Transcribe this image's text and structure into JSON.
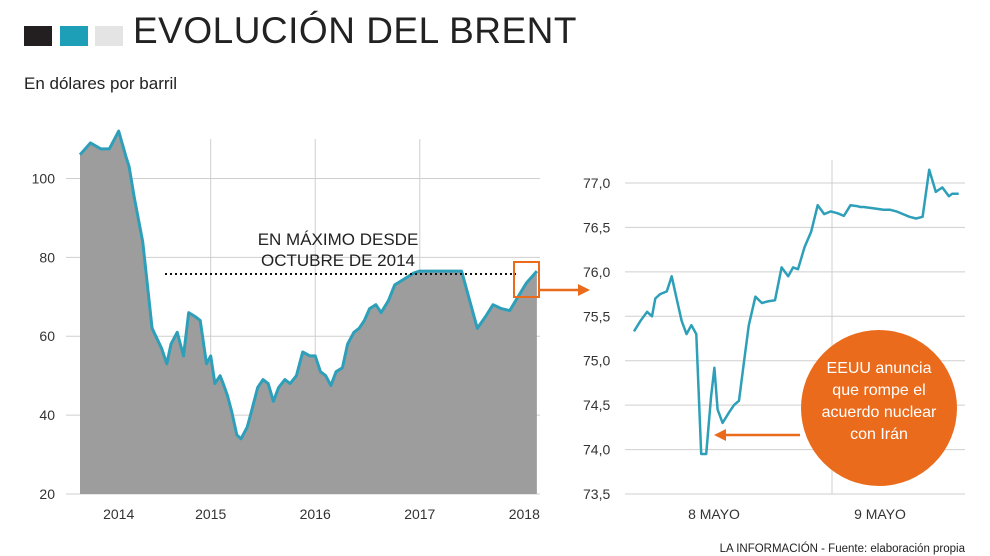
{
  "header": {
    "title": "EVOLUCIÓN DEL BRENT",
    "subtitle": "En dólares por barril",
    "square_colors": [
      "#231f20",
      "#1e9fb8",
      "#e4e4e4"
    ]
  },
  "colors": {
    "area_fill": "#9d9d9d",
    "line": "#2e9fb9",
    "accent": "#ea6b1c",
    "grid": "#cfcfcf"
  },
  "annotations": {
    "max_label_line1": "EN MÁXIMO DESDE",
    "max_label_line2": "OCTUBRE DE 2014",
    "bubble_lines": [
      "EEUU anuncia",
      "que rompe el",
      "acuerdo nuclear",
      "con Irán"
    ]
  },
  "footer": {
    "source": "LA INFORMACIÓN - Fuente: elaboración propia"
  },
  "chart_data": [
    {
      "type": "area",
      "title": "",
      "xlabel": "",
      "ylabel": "",
      "ylim": [
        20,
        110
      ],
      "yticks": [
        "100",
        "80",
        "60",
        "40",
        "20"
      ],
      "xticks": [
        "2014",
        "2015",
        "2016",
        "2017",
        "2018"
      ],
      "reference_line": 76.5,
      "grid": true,
      "series": [
        {
          "x": [
            2013.75,
            2013.85,
            2013.95,
            2014.03,
            2014.12,
            2014.19,
            2014.22,
            2014.27,
            2014.35,
            2014.44,
            2014.53,
            2014.58,
            2014.62,
            2014.68,
            2014.74,
            2014.79,
            2014.85,
            2014.9,
            2014.96,
            2015.0,
            2015.04,
            2015.09,
            2015.12,
            2015.16,
            2015.2,
            2015.25,
            2015.29,
            2015.35,
            2015.39,
            2015.45,
            2015.5,
            2015.55,
            2015.6,
            2015.65,
            2015.71,
            2015.76,
            2015.82,
            2015.88,
            2015.95,
            2016.0,
            2016.05,
            2016.1,
            2016.15,
            2016.2,
            2016.26,
            2016.31,
            2016.37,
            2016.42,
            2016.47,
            2016.52,
            2016.58,
            2016.63,
            2016.7,
            2016.76,
            2016.82,
            2016.88,
            2016.94,
            2017.0,
            2017.05,
            2017.12,
            2017.19,
            2017.26,
            2017.33,
            2017.4,
            2017.48,
            2017.55,
            2017.63,
            2017.7,
            2017.78,
            2017.86,
            2017.92,
            2018.0,
            2018.05,
            2018.12
          ],
          "y": [
            106,
            109,
            107.5,
            107.5,
            112,
            105.5,
            103,
            95,
            84,
            62,
            57,
            53,
            58,
            61,
            55,
            66,
            65,
            64,
            53,
            55,
            48,
            50,
            48,
            45,
            41,
            35,
            34,
            37,
            41,
            47,
            49,
            48,
            43.5,
            47,
            49,
            48,
            50,
            56,
            55,
            55,
            51,
            50,
            47.5,
            51,
            52,
            58,
            61,
            62,
            64,
            67,
            68,
            66,
            69,
            73,
            74,
            75,
            76,
            76.5,
            76.5,
            76.5,
            76.5,
            76.5,
            76.5,
            76.5,
            76.5,
            76.5,
            76.5,
            76.5,
            76.5,
            76.5,
            76.5,
            76.5,
            76.5,
            76.5
          ]
        }
      ]
    },
    {
      "type": "line",
      "title": "",
      "xlabel": "",
      "ylabel": "",
      "ylim": [
        73.5,
        77.0
      ],
      "yticks": [
        "77,0",
        "76,5",
        "76,0",
        "75,5",
        "75,0",
        "74,5",
        "74,0",
        "73,5"
      ],
      "xticks": [
        "8 MAYO",
        "9 MAYO"
      ],
      "grid": true,
      "series": [
        {
          "x": [
            0,
            0.02,
            0.04,
            0.055,
            0.065,
            0.08,
            0.1,
            0.115,
            0.13,
            0.145,
            0.16,
            0.175,
            0.19,
            0.205,
            0.22,
            0.235,
            0.245,
            0.255,
            0.27,
            0.29,
            0.305,
            0.32,
            0.335,
            0.35,
            0.37,
            0.39,
            0.41,
            0.43,
            0.45,
            0.47,
            0.485,
            0.5,
            0.52,
            0.54,
            0.56,
            0.58,
            0.6,
            0.61,
            0.62,
            0.64,
            0.66,
            0.68,
            0.69,
            0.7,
            0.72,
            0.74,
            0.76,
            0.78,
            0.8,
            0.82,
            0.84,
            0.86,
            0.88,
            0.9,
            0.92,
            0.94,
            0.96,
            0.97,
            0.99
          ],
          "y": [
            75.33,
            75.45,
            75.55,
            75.5,
            75.7,
            75.75,
            75.78,
            75.95,
            75.7,
            75.45,
            75.3,
            75.4,
            75.3,
            73.95,
            73.95,
            74.6,
            74.92,
            74.45,
            74.3,
            74.42,
            74.5,
            74.55,
            74.98,
            75.4,
            75.72,
            75.65,
            75.67,
            75.68,
            76.05,
            75.95,
            76.05,
            76.03,
            76.28,
            76.45,
            76.75,
            76.65,
            76.68,
            76.67,
            76.66,
            76.63,
            76.75,
            76.74,
            76.73,
            76.73,
            76.72,
            76.71,
            76.7,
            76.7,
            76.68,
            76.65,
            76.62,
            76.6,
            76.62,
            77.15,
            76.9,
            76.95,
            76.85,
            76.88,
            76.88
          ]
        }
      ]
    }
  ]
}
